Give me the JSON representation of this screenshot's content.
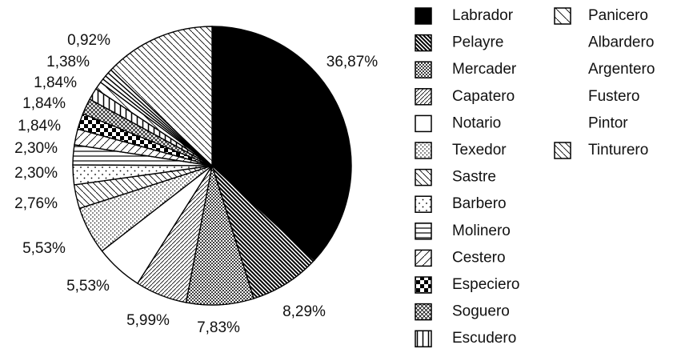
{
  "chart_data": {
    "type": "pie",
    "categories": [
      "Labrador",
      "Pelayre",
      "Mercader",
      "Capatero",
      "Notario",
      "Texedor",
      "Sastre",
      "Barbero",
      "Molinero",
      "Cestero",
      "Especiero",
      "Soguero",
      "Escudero",
      "Panicero",
      "Albardero",
      "Argentero",
      "Fustero",
      "Pintor",
      "Tinturero"
    ],
    "values": [
      36.87,
      8.29,
      7.83,
      5.99,
      5.53,
      5.53,
      2.76,
      2.3,
      2.3,
      1.84,
      1.84,
      1.84,
      1.38,
      0.92,
      0.46,
      0.46,
      0.46,
      0.46,
      12.94
    ],
    "value_labels": [
      "36,87%",
      "8,29%",
      "7,83%",
      "5,99%",
      "5,53%",
      "5,53%",
      "2,76%",
      "2,30%",
      "2,30%",
      "1,84%",
      "1,84%",
      "1,84%",
      "1,38%",
      "0,92%",
      null,
      null,
      null,
      null,
      null
    ],
    "fills": [
      "solid",
      "dense-back",
      "grid-dots",
      "fine-fwd",
      "white",
      "dots",
      "back",
      "sparse-dots",
      "horiz",
      "sparse-fwd",
      "checker",
      "cross",
      "vert",
      "sparse-back",
      "none",
      "none",
      "none",
      "none",
      "back"
    ],
    "color": "#000000"
  }
}
